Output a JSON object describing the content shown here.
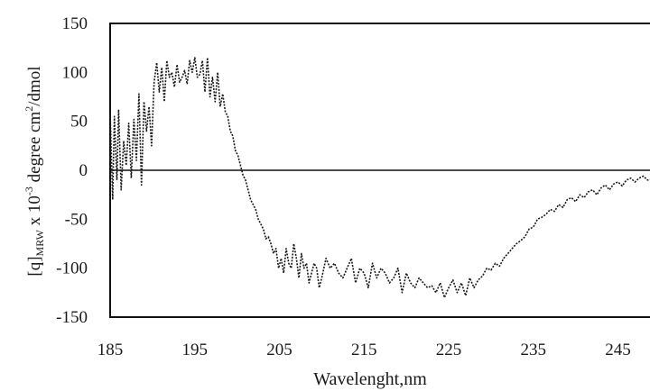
{
  "chart_data": {
    "type": "line",
    "xlabel": "Wavelenght,nm",
    "ylabel": {
      "prefix": "[q]",
      "subscript": "MRW",
      "middle": " x 10",
      "sup1": "-3",
      "after": " degree cm",
      "sup2": "2",
      "suffix": "/dmol"
    },
    "xlim": [
      185,
      249
    ],
    "ylim": [
      -150,
      150
    ],
    "xticks": [
      185,
      195,
      205,
      215,
      225,
      235,
      245
    ],
    "yticks": [
      150,
      100,
      50,
      0,
      -50,
      -100,
      -150
    ],
    "grid": false,
    "line_style": "dotted",
    "line_color": "#1a1a1a",
    "series": [
      {
        "x": [
          185.0,
          185.3,
          185.5,
          185.8,
          186.0,
          186.3,
          186.6,
          186.9,
          187.2,
          187.5,
          187.8,
          188.1,
          188.4,
          188.7,
          189.0,
          189.3,
          189.6,
          189.9,
          190.2,
          190.5,
          190.8,
          191.1,
          191.4,
          191.7,
          192.0,
          192.3,
          192.6,
          192.9,
          193.2,
          193.5,
          193.8,
          194.1,
          194.4,
          194.7,
          195.0,
          195.3,
          195.6,
          195.9,
          196.2,
          196.5,
          196.8,
          197.1,
          197.4,
          197.7,
          198.0,
          198.3,
          198.6,
          198.9,
          199.2,
          199.5,
          199.8,
          200.1,
          200.4,
          200.7,
          201.0,
          201.3,
          201.6,
          201.9,
          202.2,
          202.5,
          202.8,
          203.1,
          203.4,
          203.7,
          204.0,
          204.3,
          204.6,
          204.9,
          205.2,
          205.5,
          205.8,
          206.1,
          206.4,
          206.7,
          207.0,
          207.3,
          207.6,
          207.9,
          208.2,
          208.5,
          208.8,
          209.1,
          209.4,
          209.7,
          210.0,
          210.5,
          211.0,
          211.5,
          212.0,
          212.5,
          213.0,
          213.5,
          214.0,
          214.5,
          215.0,
          215.5,
          216.0,
          216.5,
          217.0,
          217.5,
          218.0,
          218.5,
          219.0,
          219.5,
          220.0,
          220.5,
          221.0,
          221.5,
          222.0,
          222.5,
          223.0,
          223.5,
          224.0,
          224.5,
          225.0,
          225.5,
          226.0,
          226.5,
          227.0,
          227.5,
          228.0,
          228.5,
          229.0,
          229.5,
          230.0,
          230.5,
          231.0,
          231.5,
          232.0,
          232.5,
          233.0,
          233.5,
          234.0,
          234.5,
          235.0,
          235.5,
          236.0,
          236.5,
          237.0,
          237.5,
          238.0,
          238.5,
          239.0,
          239.5,
          240.0,
          240.5,
          241.0,
          241.5,
          242.0,
          242.5,
          243.0,
          243.5,
          244.0,
          244.5,
          245.0,
          245.5,
          246.0,
          246.5,
          247.0,
          247.5,
          248.0,
          248.5,
          249.0
        ],
        "y": [
          60,
          -30,
          55,
          -10,
          62,
          -20,
          30,
          5,
          48,
          -8,
          52,
          10,
          78,
          -15,
          70,
          40,
          65,
          25,
          90,
          110,
          80,
          105,
          70,
          112,
          95,
          100,
          85,
          108,
          90,
          95,
          102,
          88,
          112,
          100,
          115,
          95,
          98,
          112,
          80,
          115,
          75,
          95,
          70,
          100,
          65,
          78,
          60,
          55,
          40,
          35,
          20,
          15,
          5,
          -5,
          -10,
          -20,
          -30,
          -35,
          -40,
          -50,
          -55,
          -60,
          -70,
          -68,
          -75,
          -85,
          -80,
          -100,
          -90,
          -105,
          -80,
          -95,
          -100,
          -75,
          -90,
          -110,
          -85,
          -100,
          -95,
          -115,
          -105,
          -95,
          -100,
          -120,
          -110,
          -90,
          -100,
          -95,
          -105,
          -110,
          -100,
          -90,
          -115,
          -100,
          -105,
          -120,
          -95,
          -110,
          -100,
          -105,
          -115,
          -110,
          -100,
          -125,
          -105,
          -115,
          -120,
          -110,
          -115,
          -120,
          -118,
          -125,
          -115,
          -130,
          -120,
          -112,
          -125,
          -115,
          -128,
          -110,
          -120,
          -112,
          -108,
          -100,
          -102,
          -95,
          -98,
          -90,
          -85,
          -80,
          -75,
          -72,
          -68,
          -60,
          -58,
          -50,
          -48,
          -45,
          -40,
          -42,
          -35,
          -38,
          -30,
          -28,
          -32,
          -25,
          -28,
          -22,
          -20,
          -25,
          -18,
          -15,
          -20,
          -14,
          -12,
          -16,
          -10,
          -8,
          -12,
          -8,
          -6,
          -10,
          -9
        ]
      }
    ]
  }
}
